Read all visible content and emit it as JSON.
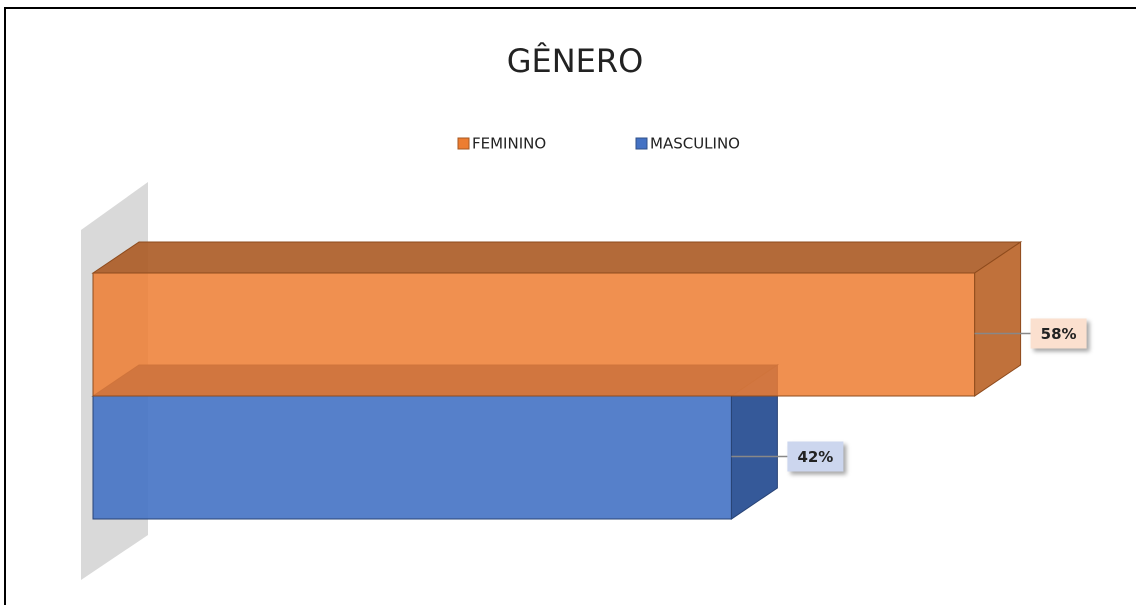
{
  "chart_data": {
    "type": "bar3d",
    "orientation": "horizontal",
    "title": "GÊNERO",
    "series": [
      {
        "name": "FEMININO",
        "color": "#ed7d31",
        "values": [
          58
        ],
        "value_labels": [
          "58%"
        ]
      },
      {
        "name": "MASCULINO",
        "color": "#4472c4",
        "values": [
          42
        ],
        "value_labels": [
          "42%"
        ]
      }
    ]
  }
}
